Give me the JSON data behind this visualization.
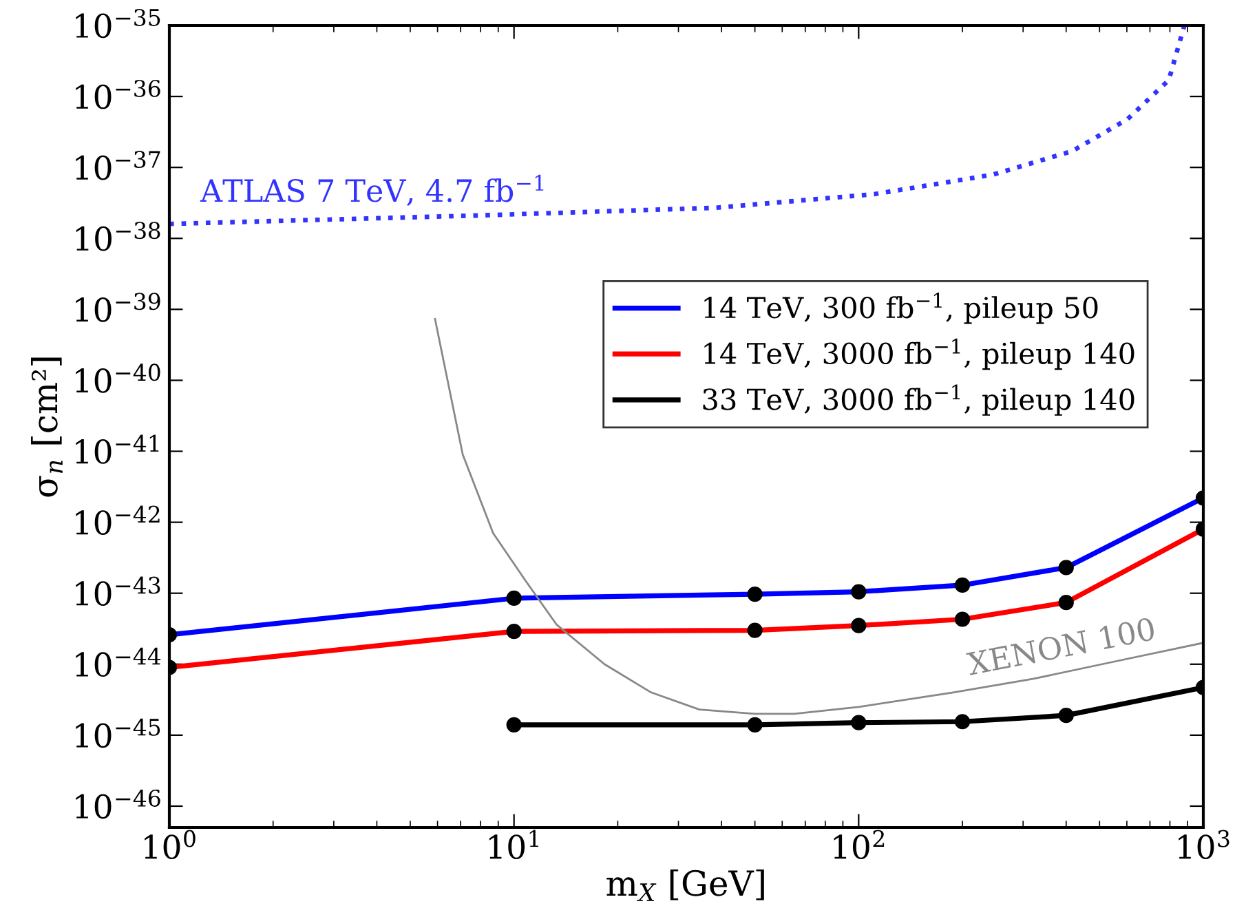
{
  "chart_data": {
    "type": "line",
    "xlabel": "m$_{X}$ [GeV]",
    "ylabel": "σ$_{n}$ [cm²]",
    "log": "xy",
    "grid": false,
    "legend": "right",
    "xlim": [
      1,
      1000
    ],
    "xticks": [
      {
        "value": 1,
        "label": "10$^{0}$"
      },
      {
        "value": 10,
        "label": "10$^{1}$"
      },
      {
        "value": 100,
        "label": "10$^{2}$"
      },
      {
        "value": 1000,
        "label": "10$^{3}$"
      }
    ],
    "ylim": [
      5e-47,
      1e-35
    ],
    "yticks": [
      {
        "value": 1e-46,
        "label": "10$^{−46}$"
      },
      {
        "value": 1e-45,
        "label": "10$^{−45}$"
      },
      {
        "value": 1e-44,
        "label": "10$^{−44}$"
      },
      {
        "value": 1e-43,
        "label": "10$^{−43}$"
      },
      {
        "value": 1e-42,
        "label": "10$^{−42}$"
      },
      {
        "value": 1e-41,
        "label": "10$^{−41}$"
      },
      {
        "value": 1e-40,
        "label": "10$^{−40}$"
      },
      {
        "value": 1e-39,
        "label": "10$^{−39}$"
      },
      {
        "value": 1e-38,
        "label": "10$^{−38}$"
      },
      {
        "value": 1e-37,
        "label": "10$^{−37}$"
      },
      {
        "value": 1e-36,
        "label": "10$^{−36}$"
      },
      {
        "value": 1e-35,
        "label": "10$^{−35}$"
      }
    ],
    "series": [
      {
        "name": "14 TeV, 300 fb$^{−1}$, pileup 50",
        "color": "#0000ff",
        "marker": "circle",
        "line_style": "solid",
        "x": [
          1,
          10,
          50,
          100,
          200,
          400,
          1000
        ],
        "values": [
          2.6e-44,
          8.5e-44,
          9.7e-44,
          1.05e-43,
          1.3e-43,
          2.3e-43,
          2.2e-42
        ]
      },
      {
        "name": "14 TeV, 3000 fb$^{−1}$, pileup 140",
        "color": "#ff0000",
        "marker": "circle",
        "line_style": "solid",
        "x": [
          1,
          10,
          50,
          100,
          200,
          400,
          1000
        ],
        "values": [
          9e-45,
          2.9e-44,
          3e-44,
          3.5e-44,
          4.3e-44,
          7.4e-44,
          8e-43
        ]
      },
      {
        "name": "33 TeV, 3000 fb$^{−1}$, pileup 140",
        "color": "#000000",
        "marker": "circle",
        "line_style": "solid",
        "x": [
          10,
          50,
          100,
          200,
          400,
          1000
        ],
        "values": [
          1.4e-45,
          1.4e-45,
          1.5e-45,
          1.55e-45,
          1.9e-45,
          4.7e-45
        ]
      },
      {
        "name": "ATLAS 7 TeV, 4.7 fb$^{−1}$",
        "color": "#3333ff",
        "marker": "none",
        "line_style": "dotted",
        "x": [
          1,
          7.8,
          38.5,
          111,
          245,
          417,
          603,
          794,
          881
        ],
        "values": [
          1.6e-38,
          2.1e-38,
          2.7e-38,
          4.2e-38,
          7.9e-38,
          1.7e-37,
          4.8e-37,
          1.7e-36,
          1e-35
        ]
      },
      {
        "name": "XENON 100",
        "color": "#888888",
        "marker": "none",
        "line_style": "solid",
        "x": [
          5.9,
          7.1,
          8.7,
          10.8,
          13.3,
          18.3,
          25,
          34.5,
          50,
          65,
          100,
          188,
          320,
          543,
          1000
        ],
        "values": [
          7.3e-40,
          9e-42,
          7e-43,
          1.5e-43,
          3.6e-44,
          1e-44,
          4e-45,
          2.3e-45,
          2e-45,
          2e-45,
          2.5e-45,
          4e-45,
          6.2e-45,
          1.07e-44,
          2e-44
        ]
      }
    ]
  }
}
